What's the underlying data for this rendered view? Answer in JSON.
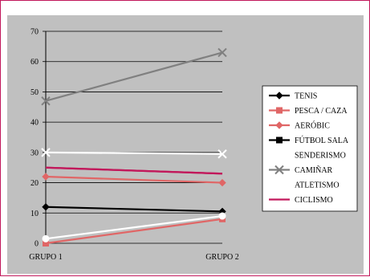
{
  "chart_data": {
    "type": "line",
    "categories": [
      "GRUPO 1",
      "GRUPO 2"
    ],
    "ylim": [
      0,
      70
    ],
    "yticks": [
      0,
      10,
      20,
      30,
      40,
      50,
      60,
      70
    ],
    "grid": "horizontal",
    "legend_position": "right",
    "series": [
      {
        "name": "TENIS",
        "values": [
          12,
          10.5
        ],
        "color": "#000000",
        "marker": "diamond"
      },
      {
        "name": "PESCA / CAZA",
        "values": [
          0,
          8
        ],
        "color": "#e06666",
        "marker": "square"
      },
      {
        "name": "AERÓBIC",
        "values": [
          22,
          20
        ],
        "color": "#e06666",
        "marker": "diamond"
      },
      {
        "name": "FÚTBOL SALA",
        "values": [
          25,
          23
        ],
        "color": "#c2185b",
        "marker": "none"
      },
      {
        "name": "SENDERISMO",
        "values": [
          30,
          29.5
        ],
        "color": "#ffffff",
        "marker": "x"
      },
      {
        "name": "CAMIÑAR",
        "values": [
          47,
          63
        ],
        "color": "#808080",
        "marker": "x"
      },
      {
        "name": "ATLETISMO",
        "values": [
          1.5,
          9
        ],
        "color": "#ffffff",
        "marker": "circle"
      },
      {
        "name": "CICLISMO",
        "values": [
          25,
          23
        ],
        "color": "#c2185b",
        "marker": "none"
      }
    ],
    "legend": [
      {
        "name": "TENIS",
        "color": "#000000",
        "marker": "diamond"
      },
      {
        "name": "PESCA / CAZA",
        "color": "#e06666",
        "marker": "square"
      },
      {
        "name": "AERÓBIC",
        "color": "#e06666",
        "marker": "diamond"
      },
      {
        "name": "FÚTBOL SALA",
        "color": "#000000",
        "marker": "square"
      },
      {
        "name": "SENDERISMO",
        "color": "#ffffff",
        "marker": "x"
      },
      {
        "name": "CAMIÑAR",
        "color": "#808080",
        "marker": "x"
      },
      {
        "name": "ATLETISMO",
        "color": "#ffffff",
        "marker": "circle"
      },
      {
        "name": "CICLISMO",
        "color": "#c2185b",
        "marker": "none"
      }
    ]
  }
}
